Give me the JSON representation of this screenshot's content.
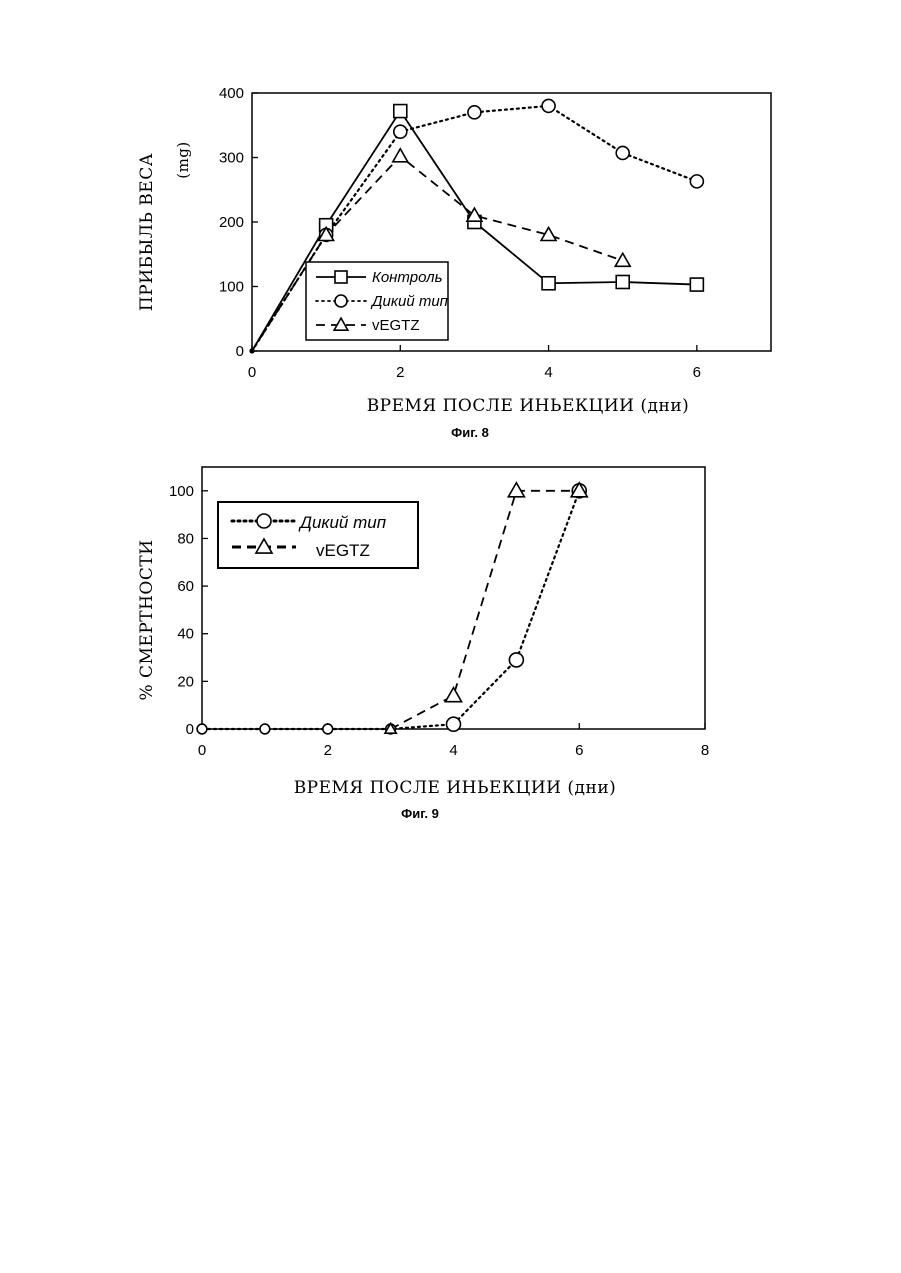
{
  "chart_data": [
    {
      "type": "line",
      "caption": "Фиг. 8",
      "xlabel": "ВРЕМЯ ПОСЛЕ ИНЬЕКЦИИ (дни)",
      "ylabel": "ПРИБЫЛЬ ВЕСА",
      "yunit": "(mg)",
      "xlim": [
        0,
        7
      ],
      "ylim": [
        0,
        400
      ],
      "xticks": [
        "0",
        "2",
        "4",
        "6"
      ],
      "yticks": [
        "0",
        "100",
        "200",
        "300",
        "400"
      ],
      "legend_position": "bottom-left",
      "series": [
        {
          "name": "Контроль",
          "marker": "square",
          "dash": "solid",
          "x": [
            0,
            1,
            2,
            3,
            4,
            5,
            6
          ],
          "y": [
            0,
            195,
            372,
            200,
            105,
            107,
            103
          ]
        },
        {
          "name": "Дикий тип",
          "marker": "circle",
          "dash": "dotted",
          "x": [
            0,
            1,
            2,
            3,
            4,
            5,
            6
          ],
          "y": [
            0,
            180,
            340,
            370,
            380,
            307,
            263
          ]
        },
        {
          "name": "vEGTZ",
          "marker": "triangle",
          "dash": "dashed",
          "x": [
            0,
            1,
            2,
            3,
            4,
            5
          ],
          "y": [
            0,
            180,
            302,
            210,
            180,
            140
          ]
        }
      ]
    },
    {
      "type": "line",
      "caption": "Фиг. 9",
      "xlabel": "ВРЕМЯ ПОСЛЕ ИНЬЕКЦИИ (дни)",
      "ylabel": "% СМЕРТНОСТИ",
      "xlim": [
        0,
        8
      ],
      "ylim": [
        0,
        110
      ],
      "xticks": [
        "0",
        "2",
        "4",
        "6",
        "8"
      ],
      "yticks": [
        "0",
        "20",
        "40",
        "60",
        "80",
        "100"
      ],
      "legend_position": "top-left",
      "series": [
        {
          "name": "Дикий тип",
          "marker": "circle",
          "dash": "dotted",
          "x": [
            0,
            1,
            2,
            3,
            4,
            5,
            6
          ],
          "y": [
            0,
            0,
            0,
            0,
            2,
            29,
            100
          ]
        },
        {
          "name": "vEGTZ",
          "marker": "triangle",
          "dash": "dashed",
          "x": [
            3,
            4,
            5,
            6
          ],
          "y": [
            0,
            14,
            100,
            100
          ]
        }
      ]
    }
  ]
}
